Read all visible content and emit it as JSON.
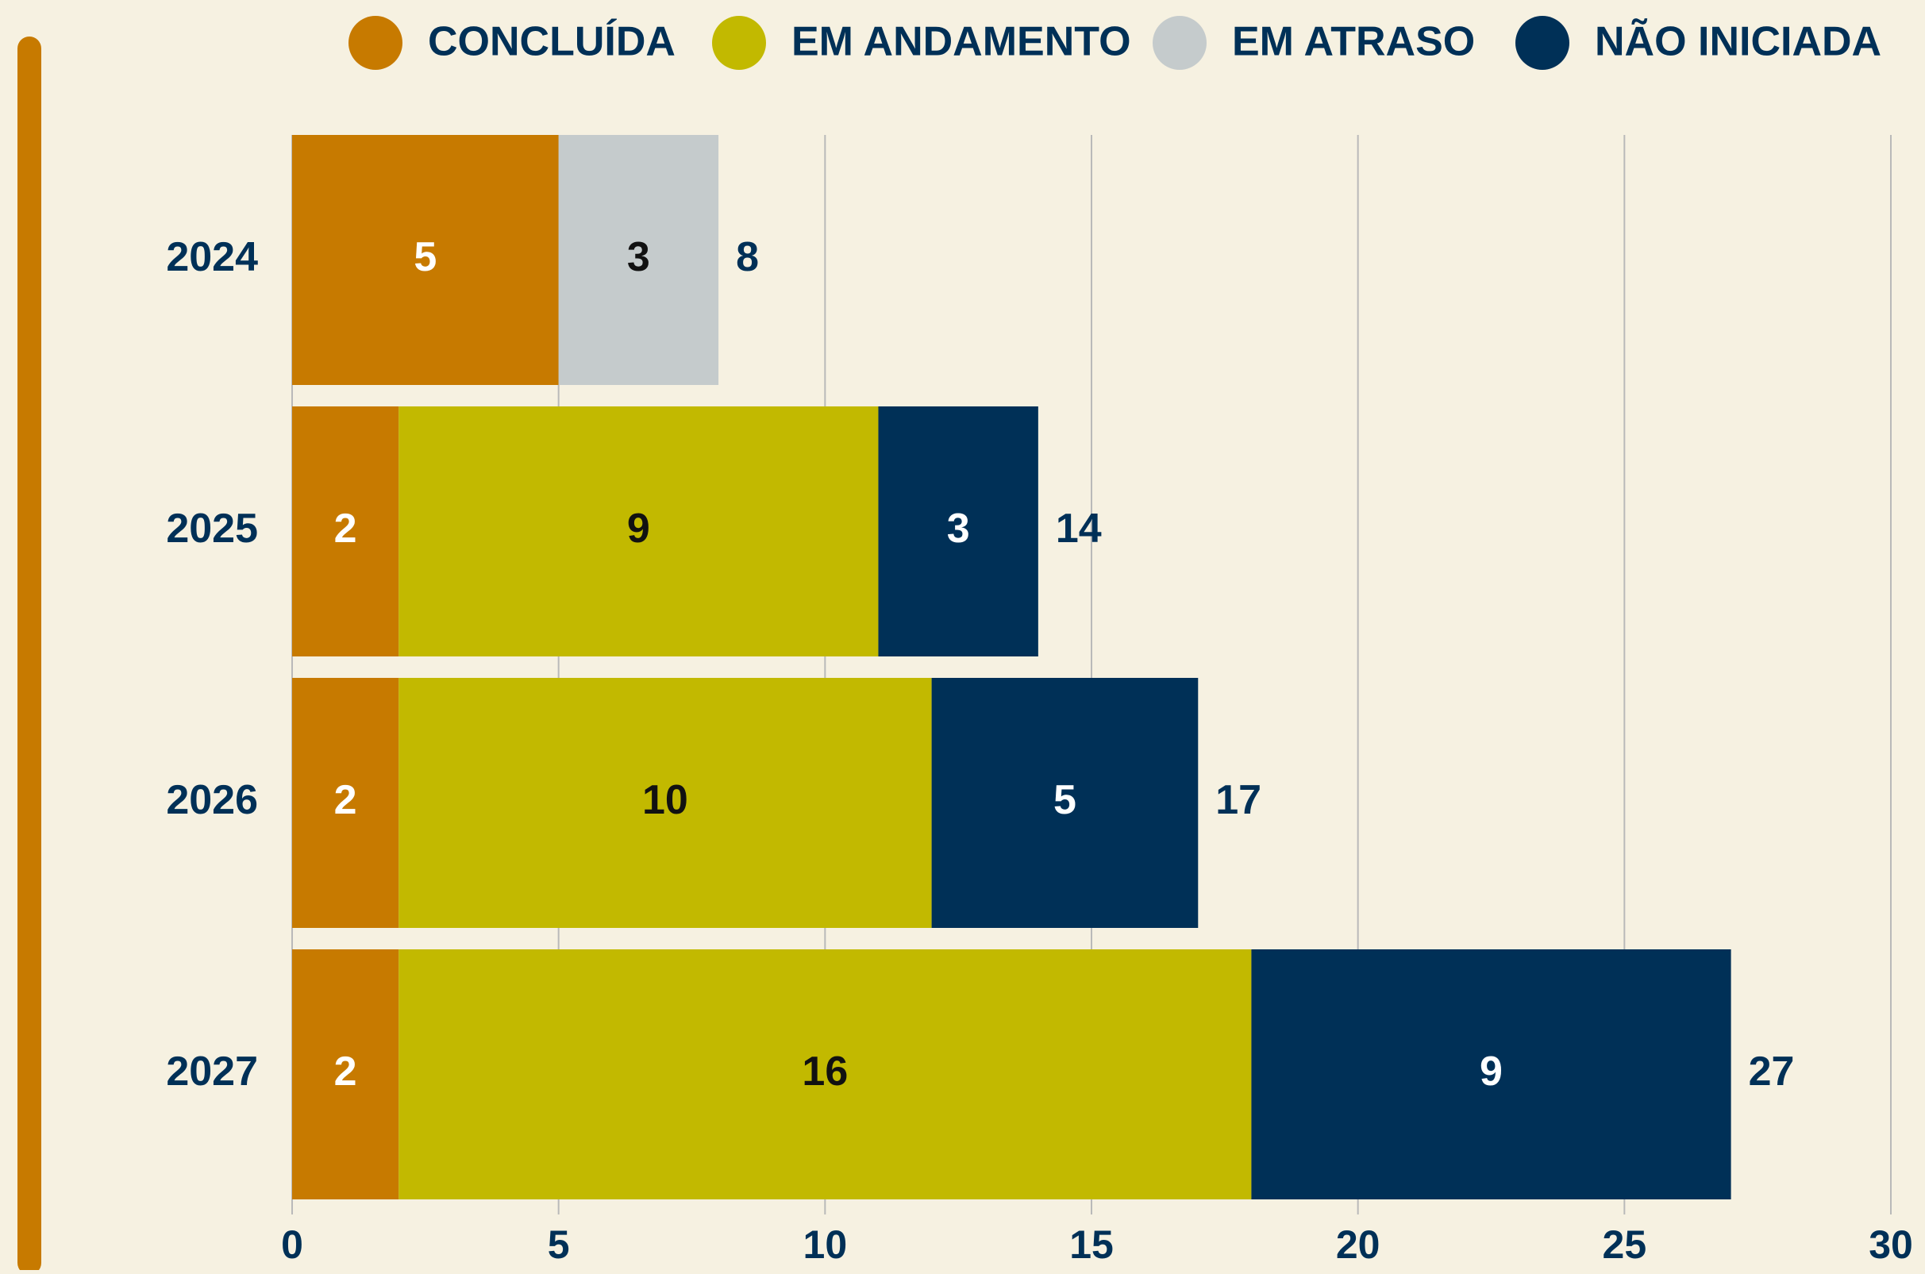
{
  "chart_data": {
    "type": "stacked-bar-horizontal",
    "categories": [
      "2024",
      "2025",
      "2026",
      "2027"
    ],
    "series": [
      {
        "name": "CONCLUÍDA",
        "color": "#c77a00",
        "label_color": "#ffffff",
        "values": [
          5,
          2,
          2,
          2
        ]
      },
      {
        "name": "EM ANDAMENTO",
        "color": "#c2b900",
        "label_color": "#111111",
        "values": [
          null,
          9,
          10,
          16
        ]
      },
      {
        "name": "EM ATRASO",
        "color": "#c5cbcc",
        "label_color": "#111111",
        "values": [
          3,
          null,
          null,
          null
        ]
      },
      {
        "name": "NÃO INICIADA",
        "color": "#003057",
        "label_color": "#ffffff",
        "values": [
          null,
          3,
          5,
          9
        ]
      }
    ],
    "totals": [
      8,
      14,
      17,
      27
    ],
    "xlim": [
      0,
      30
    ],
    "xticks": [
      0,
      5,
      10,
      15,
      20,
      25,
      30
    ],
    "grid": true
  }
}
